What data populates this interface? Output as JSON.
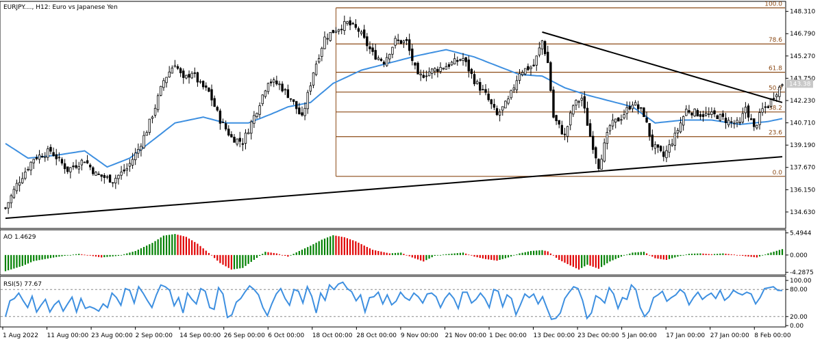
{
  "chart_data": [
    {
      "type": "candlestick",
      "title": "EURJPY...., H12: Euro vs Japanese Yen",
      "symbol": "EURJPY....",
      "timeframe": "H12",
      "description": "Euro vs Japanese Yen",
      "current_price_label": "143.38",
      "y_ticks": [
        "148.310",
        "146.790",
        "145.270",
        "143.750",
        "142.230",
        "140.710",
        "139.190",
        "137.670",
        "136.150",
        "134.630"
      ],
      "ylim": [
        133.6,
        148.9
      ],
      "x_ticks": [
        "1 Aug 2022",
        "11 Aug 00:00",
        "23 Aug 00:00",
        "2 Sep 00:00",
        "14 Sep 00:00",
        "26 Sep 00:00",
        "6 Oct 00:00",
        "18 Oct 00:00",
        "28 Oct 00:00",
        "9 Nov 00:00",
        "21 Nov 00:00",
        "1 Dec 00:00",
        "13 Dec 00:00",
        "23 Dec 00:00",
        "5 Jan 00:00",
        "17 Jan 00:00",
        "27 Jan 00:00",
        "8 Feb 00:00"
      ],
      "close_path": [
        [
          0,
          134.9
        ],
        [
          4,
          136.5
        ],
        [
          10,
          138.3
        ],
        [
          16,
          138.8
        ],
        [
          22,
          137.5
        ],
        [
          28,
          138.2
        ],
        [
          32,
          137.2
        ],
        [
          38,
          136.8
        ],
        [
          43,
          137.6
        ],
        [
          47,
          138.9
        ],
        [
          50,
          140.2
        ],
        [
          53,
          141.8
        ],
        [
          56,
          143.6
        ],
        [
          60,
          144.8
        ],
        [
          63,
          143.6
        ],
        [
          66,
          144.2
        ],
        [
          69,
          143.3
        ],
        [
          72,
          142.8
        ],
        [
          76,
          140.9
        ],
        [
          80,
          139.7
        ],
        [
          84,
          139.4
        ],
        [
          89,
          141.6
        ],
        [
          93,
          143.6
        ],
        [
          97,
          143.3
        ],
        [
          101,
          142.4
        ],
        [
          105,
          141.0
        ],
        [
          109,
          144.2
        ],
        [
          113,
          146.5
        ],
        [
          117,
          147.1
        ],
        [
          121,
          147.5
        ],
        [
          125,
          147.0
        ],
        [
          130,
          145.4
        ],
        [
          134,
          144.9
        ],
        [
          138,
          146.3
        ],
        [
          142,
          146.2
        ],
        [
          146,
          143.8
        ],
        [
          150,
          144.2
        ],
        [
          156,
          144.6
        ],
        [
          162,
          145.1
        ],
        [
          166,
          143.6
        ],
        [
          170,
          142.6
        ],
        [
          174,
          141.2
        ],
        [
          178,
          142.2
        ],
        [
          182,
          144.2
        ],
        [
          187,
          144.6
        ],
        [
          190,
          146.3
        ],
        [
          192,
          144.8
        ],
        [
          194,
          141.1
        ],
        [
          198,
          139.8
        ],
        [
          201,
          141.9
        ],
        [
          204,
          142.4
        ],
        [
          207,
          139.8
        ],
        [
          210,
          137.8
        ],
        [
          214,
          140.5
        ],
        [
          218,
          141.1
        ],
        [
          222,
          142.1
        ],
        [
          226,
          141.3
        ],
        [
          229,
          139.2
        ],
        [
          233,
          138.4
        ],
        [
          237,
          139.8
        ],
        [
          241,
          141.6
        ],
        [
          246,
          141.3
        ],
        [
          252,
          141.2
        ],
        [
          256,
          140.8
        ],
        [
          260,
          140.6
        ],
        [
          262,
          141.8
        ],
        [
          265,
          140.3
        ],
        [
          268,
          141.6
        ],
        [
          270,
          141.9
        ],
        [
          272,
          142.6
        ],
        [
          274,
          143.1
        ],
        [
          275,
          143.4
        ]
      ],
      "ma_path": [
        [
          0,
          139.3
        ],
        [
          8,
          138.3
        ],
        [
          18,
          138.5
        ],
        [
          28,
          138.8
        ],
        [
          36,
          137.7
        ],
        [
          44,
          138.3
        ],
        [
          52,
          139.5
        ],
        [
          60,
          140.7
        ],
        [
          70,
          141.1
        ],
        [
          78,
          140.7
        ],
        [
          86,
          140.7
        ],
        [
          94,
          141.3
        ],
        [
          100,
          141.8
        ],
        [
          108,
          142.1
        ],
        [
          116,
          143.4
        ],
        [
          126,
          144.3
        ],
        [
          136,
          144.8
        ],
        [
          146,
          145.3
        ],
        [
          156,
          145.7
        ],
        [
          166,
          145.2
        ],
        [
          174,
          144.6
        ],
        [
          182,
          144.0
        ],
        [
          190,
          143.9
        ],
        [
          198,
          143.1
        ],
        [
          206,
          142.6
        ],
        [
          214,
          142.2
        ],
        [
          222,
          141.8
        ],
        [
          230,
          140.7
        ],
        [
          240,
          140.9
        ],
        [
          250,
          140.9
        ],
        [
          260,
          140.6
        ],
        [
          270,
          140.8
        ],
        [
          275,
          141.0
        ]
      ],
      "trendlines": [
        {
          "from": [
            0,
            134.2
          ],
          "to": [
            275,
            138.4
          ],
          "color": "#000000"
        },
        {
          "from": [
            190,
            146.9
          ],
          "to": [
            275,
            142.1
          ],
          "color": "#000000"
        }
      ],
      "fibonacci": {
        "x_start": 117,
        "x_end": 275,
        "levels": [
          {
            "label": "100.0",
            "price": 148.55
          },
          {
            "label": "78.6",
            "price": 146.09
          },
          {
            "label": "61.8",
            "price": 144.16
          },
          {
            "label": "50.0",
            "price": 142.81
          },
          {
            "label": "38.2",
            "price": 141.45
          },
          {
            "label": "23.6",
            "price": 139.77
          },
          {
            "label": "0.0",
            "price": 137.06
          }
        ]
      },
      "colors": {
        "bull": "#000000",
        "bear": "#000000",
        "ma": "#3d8fe0",
        "fib": "#8b4a16",
        "trend": "#000000",
        "price_tag_bg": "#c8c8c8"
      }
    },
    {
      "type": "bar",
      "title": "AO 1.4629",
      "name": "AO",
      "value_label": "1.4629",
      "y_ticks": [
        "5.4944",
        "0.000",
        "-4.2875"
      ],
      "ylim": [
        -4.6,
        5.9
      ],
      "path": [
        [
          0,
          -4.0
        ],
        [
          6,
          -2.7
        ],
        [
          10,
          -1.5
        ],
        [
          18,
          -0.5
        ],
        [
          26,
          0.3
        ],
        [
          34,
          -0.6
        ],
        [
          40,
          -0.2
        ],
        [
          46,
          1.0
        ],
        [
          52,
          3.0
        ],
        [
          56,
          4.8
        ],
        [
          60,
          5.2
        ],
        [
          64,
          4.5
        ],
        [
          68,
          2.8
        ],
        [
          72,
          0.5
        ],
        [
          76,
          -2.0
        ],
        [
          80,
          -3.6
        ],
        [
          84,
          -3.2
        ],
        [
          88,
          -1.2
        ],
        [
          92,
          0.8
        ],
        [
          96,
          0.4
        ],
        [
          100,
          -0.4
        ],
        [
          104,
          1.0
        ],
        [
          108,
          2.3
        ],
        [
          112,
          3.8
        ],
        [
          116,
          4.9
        ],
        [
          120,
          4.4
        ],
        [
          124,
          3.4
        ],
        [
          130,
          1.3
        ],
        [
          136,
          0.4
        ],
        [
          140,
          0.6
        ],
        [
          144,
          -0.6
        ],
        [
          148,
          -1.6
        ],
        [
          152,
          -0.2
        ],
        [
          156,
          0.2
        ],
        [
          162,
          0.6
        ],
        [
          166,
          -0.4
        ],
        [
          170,
          -1.0
        ],
        [
          174,
          -1.4
        ],
        [
          178,
          -0.6
        ],
        [
          182,
          0.4
        ],
        [
          186,
          1.0
        ],
        [
          190,
          1.2
        ],
        [
          192,
          0.9
        ],
        [
          196,
          -1.2
        ],
        [
          200,
          -2.6
        ],
        [
          203,
          -3.6
        ],
        [
          206,
          -2.4
        ],
        [
          210,
          -3.4
        ],
        [
          214,
          -1.6
        ],
        [
          218,
          -0.4
        ],
        [
          222,
          0.6
        ],
        [
          226,
          0.8
        ],
        [
          230,
          -0.8
        ],
        [
          234,
          -1.2
        ],
        [
          238,
          -0.4
        ],
        [
          242,
          0.3
        ],
        [
          246,
          0.4
        ],
        [
          250,
          0.2
        ],
        [
          254,
          0.4
        ],
        [
          258,
          0.1
        ],
        [
          262,
          -0.3
        ],
        [
          266,
          -0.6
        ],
        [
          270,
          0.4
        ],
        [
          275,
          1.4629
        ]
      ],
      "colors": {
        "up": "#008000",
        "down": "#e00000"
      }
    },
    {
      "type": "line",
      "title": "RSI(5) 77.67",
      "name": "RSI(5)",
      "value_label": "77.67",
      "y_ticks": [
        "100.00",
        "80.00",
        "20.00",
        "0.00"
      ],
      "ylim": [
        0,
        100
      ],
      "levels": [
        80,
        20
      ],
      "values": [
        20,
        55,
        60,
        72,
        55,
        40,
        65,
        30,
        45,
        58,
        30,
        46,
        55,
        32,
        48,
        63,
        30,
        60,
        38,
        42,
        38,
        32,
        48,
        40,
        72,
        62,
        45,
        82,
        78,
        50,
        86,
        72,
        55,
        40,
        68,
        90,
        86,
        78,
        44,
        62,
        28,
        72,
        58,
        48,
        82,
        76,
        40,
        36,
        84,
        70,
        18,
        24,
        52,
        60,
        75,
        88,
        80,
        68,
        40,
        22,
        48,
        70,
        82,
        60,
        45,
        80,
        76,
        50,
        86,
        65,
        28,
        72,
        56,
        90,
        80,
        92,
        96,
        82,
        75,
        55,
        68,
        30,
        62,
        64,
        74,
        48,
        68,
        46,
        54,
        74,
        62,
        56,
        72,
        64,
        50,
        70,
        72,
        64,
        40,
        60,
        72,
        60,
        38,
        74,
        74,
        50,
        58,
        72,
        60,
        40,
        80,
        76,
        42,
        68,
        60,
        24,
        46,
        70,
        62,
        70,
        48,
        64,
        38,
        14,
        16,
        28,
        60,
        74,
        86,
        82,
        56,
        16,
        28,
        66,
        60,
        50,
        84,
        70,
        38,
        62,
        58,
        90,
        80,
        40,
        20,
        32,
        62,
        68,
        76,
        54,
        62,
        68,
        80,
        72,
        46,
        62,
        74,
        58,
        66,
        72,
        60,
        78,
        56,
        64,
        78,
        72,
        68,
        74,
        70,
        48,
        62,
        82,
        84,
        86,
        78,
        77.67
      ],
      "colors": {
        "line": "#3d8fe0"
      }
    }
  ]
}
